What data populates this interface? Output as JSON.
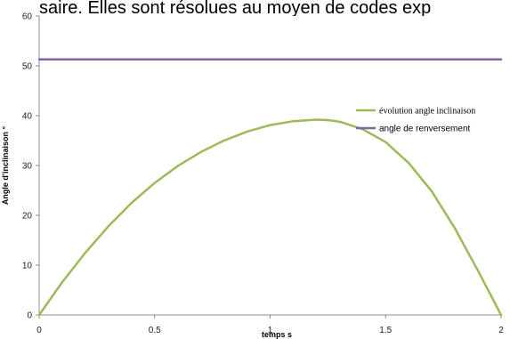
{
  "header_text": "saire. Elles sont résolues au moyen de codes exp",
  "chart_data": {
    "type": "line",
    "title": "",
    "xlabel": "temps s",
    "ylabel": "Angle d'inclinaison °",
    "xlim": [
      0,
      2
    ],
    "ylim": [
      0,
      60
    ],
    "x_ticks": [
      0,
      0.5,
      1,
      1.5,
      2
    ],
    "y_ticks": [
      0,
      10,
      20,
      30,
      40,
      50,
      60
    ],
    "grid": false,
    "legend_position": "right",
    "series": [
      {
        "name": "évolution angle inclinaison",
        "color": "#9bbb59",
        "x": [
          0,
          0.1,
          0.2,
          0.3,
          0.4,
          0.5,
          0.6,
          0.7,
          0.8,
          0.9,
          1.0,
          1.1,
          1.2,
          1.25,
          1.3,
          1.4,
          1.5,
          1.6,
          1.7,
          1.8,
          1.9,
          2.0
        ],
        "values": [
          0,
          6.6,
          12.5,
          17.8,
          22.5,
          26.5,
          29.9,
          32.7,
          35.0,
          36.8,
          38.1,
          38.9,
          39.2,
          39.1,
          38.8,
          37.3,
          34.7,
          30.5,
          24.8,
          17.4,
          8.9,
          0
        ]
      },
      {
        "name": "angle de renversement",
        "color": "#8064a2",
        "x": [
          0,
          2
        ],
        "values": [
          51.3,
          51.3
        ]
      }
    ]
  }
}
